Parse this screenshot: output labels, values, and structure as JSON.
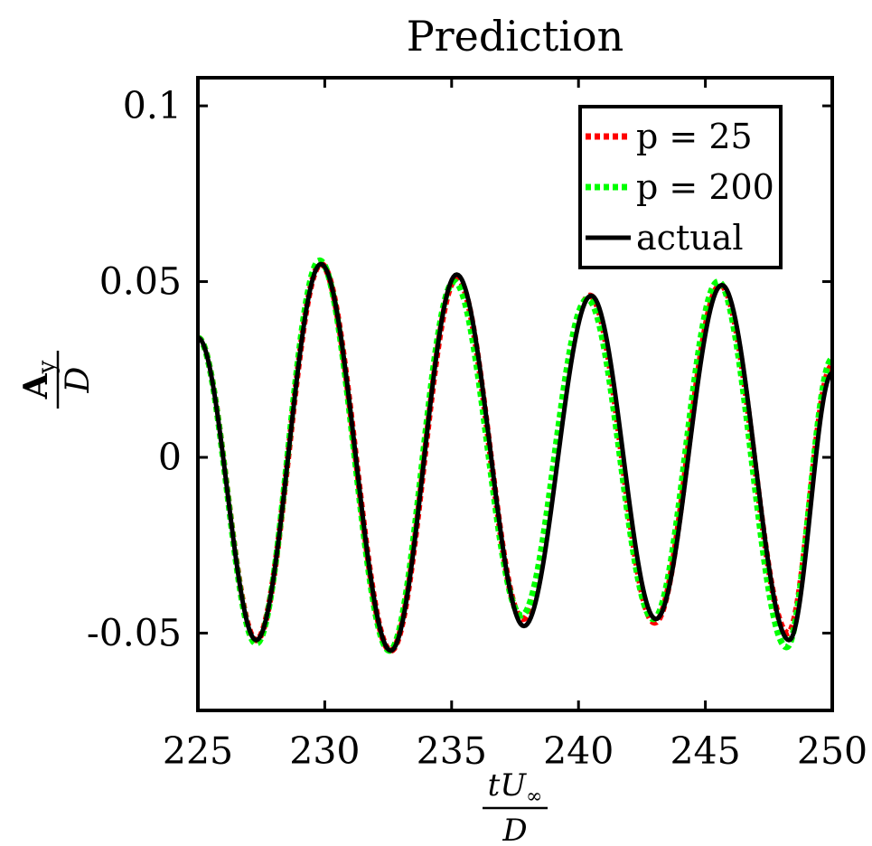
{
  "chart_data": {
    "type": "line",
    "title": "Prediction",
    "xlabel": "tU∞/D",
    "ylabel": "Ay/D",
    "xlim": [
      225,
      250
    ],
    "ylim": [
      -0.072,
      0.108
    ],
    "xticks": [
      225,
      230,
      235,
      240,
      245,
      250
    ],
    "xtick_labels": [
      "225",
      "230",
      "235",
      "240",
      "245",
      "250"
    ],
    "yticks": [
      -0.05,
      0,
      0.05,
      0.1
    ],
    "ytick_labels": [
      "-0.05",
      "0",
      "0.05",
      "0.1"
    ],
    "grid": false,
    "legend_position": "top-right",
    "series": [
      {
        "name": "p = 25",
        "color": "#ff0000",
        "style": "dotted",
        "extrema": [
          [
            225,
            0.034
          ],
          [
            227.3,
            -0.052
          ],
          [
            229.85,
            0.055
          ],
          [
            232.6,
            -0.055
          ],
          [
            235.2,
            0.051
          ],
          [
            237.8,
            -0.046
          ],
          [
            240.45,
            0.046
          ],
          [
            243.0,
            -0.047
          ],
          [
            245.6,
            0.049
          ],
          [
            248.25,
            -0.05
          ],
          [
            250,
            0.026
          ]
        ]
      },
      {
        "name": "p = 200",
        "color": "#00ff00",
        "style": "dotted",
        "extrema": [
          [
            225,
            0.034
          ],
          [
            227.3,
            -0.053
          ],
          [
            229.8,
            0.056
          ],
          [
            232.55,
            -0.055
          ],
          [
            235.1,
            0.05
          ],
          [
            237.75,
            -0.045
          ],
          [
            240.35,
            0.045
          ],
          [
            242.95,
            -0.046
          ],
          [
            245.5,
            0.05
          ],
          [
            248.2,
            -0.054
          ],
          [
            250,
            0.028
          ]
        ]
      },
      {
        "name": "actual",
        "color": "#000000",
        "style": "solid",
        "extrema": [
          [
            225,
            0.034
          ],
          [
            227.3,
            -0.052
          ],
          [
            229.85,
            0.055
          ],
          [
            232.6,
            -0.055
          ],
          [
            235.2,
            0.052
          ],
          [
            237.85,
            -0.048
          ],
          [
            240.5,
            0.046
          ],
          [
            243.05,
            -0.046
          ],
          [
            245.65,
            0.049
          ],
          [
            248.3,
            -0.052
          ],
          [
            250,
            0.024
          ]
        ]
      }
    ]
  }
}
